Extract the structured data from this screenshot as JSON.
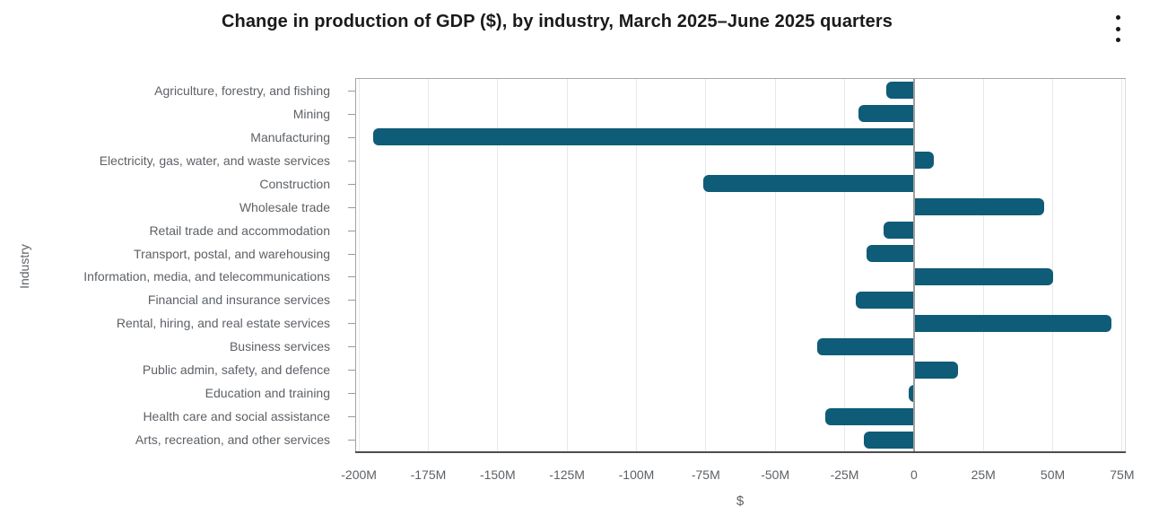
{
  "header": {
    "title": "Change in production of GDP ($), by industry, March 2025–June 2025 quarters",
    "menu_icon": "kebab-menu"
  },
  "chart_data": {
    "type": "bar",
    "orientation": "horizontal",
    "title": "Change in production of GDP ($), by industry, March 2025–June 2025 quarters",
    "xlabel": "$",
    "ylabel": "Industry",
    "unit": "millions of dollars",
    "categories": [
      "Agriculture, forestry, and fishing",
      "Mining",
      "Manufacturing",
      "Electricity, gas, water, and waste services",
      "Construction",
      "Wholesale trade",
      "Retail trade and accommodation",
      "Transport, postal, and warehousing",
      "Information, media, and telecommunications",
      "Financial and insurance services",
      "Rental, hiring, and real estate services",
      "Business services",
      "Public admin, safety, and defence",
      "Education and training",
      "Health care and social assistance",
      "Arts, recreation, and other services"
    ],
    "values_millions": [
      -10,
      -20,
      -195,
      7,
      -76,
      47,
      -11,
      -17,
      50,
      -21,
      71,
      -35,
      16,
      -2,
      -32,
      -18
    ],
    "x_ticks": [
      {
        "label": "-200M",
        "value": -200
      },
      {
        "label": "-175M",
        "value": -175
      },
      {
        "label": "-150M",
        "value": -150
      },
      {
        "label": "-125M",
        "value": -125
      },
      {
        "label": "-100M",
        "value": -100
      },
      {
        "label": "-75M",
        "value": -75
      },
      {
        "label": "-50M",
        "value": -50
      },
      {
        "label": "-25M",
        "value": -25
      },
      {
        "label": "0",
        "value": 0
      },
      {
        "label": "25M",
        "value": 25
      },
      {
        "label": "50M",
        "value": 50
      },
      {
        "label": "75M",
        "value": 75
      }
    ],
    "xlim": [
      -201,
      76
    ],
    "grid": true,
    "legend": false,
    "colors": {
      "bar": "#0e5c78",
      "title_text": "#1a1a1c",
      "axis_text": "#5d6166",
      "gridline": "#e8e8e8",
      "zero_line": "#9e9e9e",
      "axis_line_bottom": "#4d4d4d"
    }
  }
}
